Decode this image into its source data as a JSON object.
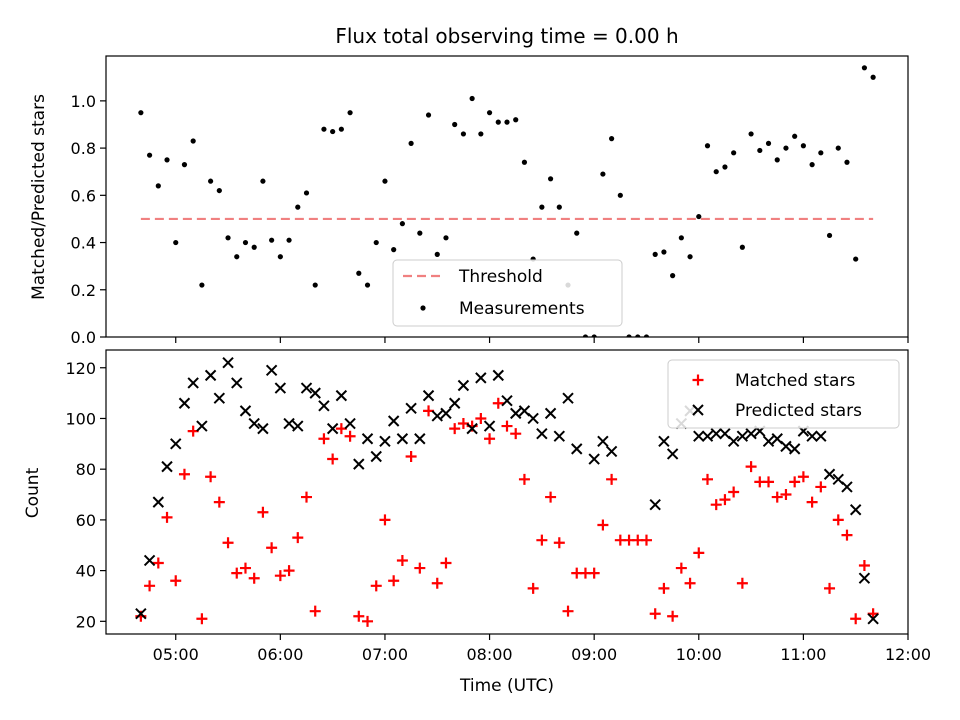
{
  "chart_data": [
    {
      "type": "scatter",
      "title": "Flux total observing time = 0.00 h",
      "ylabel": "Matched/Predicted stars",
      "xlabel": "",
      "ylim": [
        0,
        1.19
      ],
      "yticks": [
        "0.0",
        "0.2",
        "0.4",
        "0.6",
        "0.8",
        "1.0"
      ],
      "ytick_values": [
        0,
        0.2,
        0.4,
        0.6,
        0.8,
        1.0
      ],
      "legend_position": "lower-center",
      "series": [
        {
          "name": "Threshold",
          "style": "dashed-line",
          "color": "#f08080",
          "points": [
            [
              "04:40",
              0.5
            ],
            [
              "11:40",
              0.5
            ]
          ]
        },
        {
          "name": "Measurements",
          "style": "dot",
          "color": "#000000",
          "points": [
            [
              "04:40",
              0.95
            ],
            [
              "04:45",
              0.77
            ],
            [
              "04:50",
              0.64
            ],
            [
              "04:55",
              0.75
            ],
            [
              "05:00",
              0.4
            ],
            [
              "05:05",
              0.73
            ],
            [
              "05:10",
              0.83
            ],
            [
              "05:15",
              0.22
            ],
            [
              "05:20",
              0.66
            ],
            [
              "05:25",
              0.62
            ],
            [
              "05:30",
              0.42
            ],
            [
              "05:35",
              0.34
            ],
            [
              "05:40",
              0.4
            ],
            [
              "05:45",
              0.38
            ],
            [
              "05:50",
              0.66
            ],
            [
              "05:55",
              0.41
            ],
            [
              "06:00",
              0.34
            ],
            [
              "06:05",
              0.41
            ],
            [
              "06:10",
              0.55
            ],
            [
              "06:15",
              0.61
            ],
            [
              "06:20",
              0.22
            ],
            [
              "06:25",
              0.88
            ],
            [
              "06:30",
              0.87
            ],
            [
              "06:35",
              0.88
            ],
            [
              "06:40",
              0.95
            ],
            [
              "06:45",
              0.27
            ],
            [
              "06:50",
              0.22
            ],
            [
              "06:55",
              0.4
            ],
            [
              "07:00",
              0.66
            ],
            [
              "07:05",
              0.37
            ],
            [
              "07:10",
              0.48
            ],
            [
              "07:15",
              0.82
            ],
            [
              "07:20",
              0.44
            ],
            [
              "07:25",
              0.94
            ],
            [
              "07:30",
              0.35
            ],
            [
              "07:35",
              0.42
            ],
            [
              "07:40",
              0.9
            ],
            [
              "07:45",
              0.86
            ],
            [
              "07:50",
              1.01
            ],
            [
              "07:55",
              0.86
            ],
            [
              "08:00",
              0.95
            ],
            [
              "08:05",
              0.91
            ],
            [
              "08:10",
              0.91
            ],
            [
              "08:15",
              0.92
            ],
            [
              "08:20",
              0.74
            ],
            [
              "08:25",
              0.33
            ],
            [
              "08:30",
              0.55
            ],
            [
              "08:35",
              0.67
            ],
            [
              "08:40",
              0.55
            ],
            [
              "08:45",
              0.22
            ],
            [
              "08:50",
              0.44
            ],
            [
              "08:55",
              0.0
            ],
            [
              "09:00",
              0.0
            ],
            [
              "09:05",
              0.69
            ],
            [
              "09:10",
              0.84
            ],
            [
              "09:15",
              0.6
            ],
            [
              "09:20",
              0.0
            ],
            [
              "09:25",
              0.0
            ],
            [
              "09:30",
              0.0
            ],
            [
              "09:35",
              0.35
            ],
            [
              "09:40",
              0.36
            ],
            [
              "09:45",
              0.26
            ],
            [
              "09:50",
              0.42
            ],
            [
              "09:55",
              0.34
            ],
            [
              "10:00",
              0.51
            ],
            [
              "10:05",
              0.81
            ],
            [
              "10:10",
              0.7
            ],
            [
              "10:15",
              0.72
            ],
            [
              "10:20",
              0.78
            ],
            [
              "10:25",
              0.38
            ],
            [
              "10:30",
              0.86
            ],
            [
              "10:35",
              0.79
            ],
            [
              "10:40",
              0.82
            ],
            [
              "10:45",
              0.75
            ],
            [
              "10:50",
              0.8
            ],
            [
              "10:55",
              0.85
            ],
            [
              "11:00",
              0.81
            ],
            [
              "11:05",
              0.73
            ],
            [
              "11:10",
              0.78
            ],
            [
              "11:15",
              0.43
            ],
            [
              "11:20",
              0.8
            ],
            [
              "11:25",
              0.74
            ],
            [
              "11:30",
              0.33
            ],
            [
              "11:35",
              1.14
            ],
            [
              "11:40",
              1.1
            ]
          ]
        }
      ]
    },
    {
      "type": "scatter",
      "title": "",
      "ylabel": "Count",
      "xlabel": "Time (UTC)",
      "xlim": [
        "04:20",
        "12:00"
      ],
      "xticks": [
        "05:00",
        "06:00",
        "07:00",
        "08:00",
        "09:00",
        "10:00",
        "11:00",
        "12:00"
      ],
      "ylim": [
        15,
        127
      ],
      "yticks": [
        "20",
        "40",
        "60",
        "80",
        "100",
        "120"
      ],
      "ytick_values": [
        20,
        40,
        60,
        80,
        100,
        120
      ],
      "legend_position": "top-right",
      "series": [
        {
          "name": "Matched stars",
          "style": "plus",
          "color": "#ff0000",
          "points": [
            [
              "04:40",
              22
            ],
            [
              "04:45",
              34
            ],
            [
              "04:50",
              43
            ],
            [
              "04:55",
              61
            ],
            [
              "05:00",
              36
            ],
            [
              "05:05",
              78
            ],
            [
              "05:10",
              95
            ],
            [
              "05:15",
              21
            ],
            [
              "05:20",
              77
            ],
            [
              "05:25",
              67
            ],
            [
              "05:30",
              51
            ],
            [
              "05:35",
              39
            ],
            [
              "05:40",
              41
            ],
            [
              "05:45",
              37
            ],
            [
              "05:50",
              63
            ],
            [
              "05:55",
              49
            ],
            [
              "06:00",
              38
            ],
            [
              "06:05",
              40
            ],
            [
              "06:10",
              53
            ],
            [
              "06:15",
              69
            ],
            [
              "06:20",
              24
            ],
            [
              "06:25",
              92
            ],
            [
              "06:30",
              84
            ],
            [
              "06:35",
              96
            ],
            [
              "06:40",
              93
            ],
            [
              "06:45",
              22
            ],
            [
              "06:50",
              20
            ],
            [
              "06:55",
              34
            ],
            [
              "07:00",
              60
            ],
            [
              "07:05",
              36
            ],
            [
              "07:10",
              44
            ],
            [
              "07:15",
              85
            ],
            [
              "07:20",
              41
            ],
            [
              "07:25",
              103
            ],
            [
              "07:30",
              35
            ],
            [
              "07:35",
              43
            ],
            [
              "07:40",
              96
            ],
            [
              "07:45",
              98
            ],
            [
              "07:50",
              97
            ],
            [
              "07:55",
              100
            ],
            [
              "08:00",
              92
            ],
            [
              "08:05",
              106
            ],
            [
              "08:10",
              97
            ],
            [
              "08:15",
              94
            ],
            [
              "08:20",
              76
            ],
            [
              "08:25",
              33
            ],
            [
              "08:30",
              52
            ],
            [
              "08:35",
              69
            ],
            [
              "08:40",
              51
            ],
            [
              "08:45",
              24
            ],
            [
              "08:50",
              39
            ],
            [
              "08:55",
              39
            ],
            [
              "09:00",
              39
            ],
            [
              "09:05",
              58
            ],
            [
              "09:10",
              76
            ],
            [
              "09:15",
              52
            ],
            [
              "09:20",
              52
            ],
            [
              "09:25",
              52
            ],
            [
              "09:30",
              52
            ],
            [
              "09:35",
              23
            ],
            [
              "09:40",
              33
            ],
            [
              "09:45",
              22
            ],
            [
              "09:50",
              41
            ],
            [
              "09:55",
              35
            ],
            [
              "10:00",
              47
            ],
            [
              "10:05",
              76
            ],
            [
              "10:10",
              66
            ],
            [
              "10:15",
              68
            ],
            [
              "10:20",
              71
            ],
            [
              "10:25",
              35
            ],
            [
              "10:30",
              81
            ],
            [
              "10:35",
              75
            ],
            [
              "10:40",
              75
            ],
            [
              "10:45",
              69
            ],
            [
              "10:50",
              70
            ],
            [
              "10:55",
              75
            ],
            [
              "11:00",
              77
            ],
            [
              "11:05",
              67
            ],
            [
              "11:10",
              73
            ],
            [
              "11:15",
              33
            ],
            [
              "11:20",
              60
            ],
            [
              "11:25",
              54
            ],
            [
              "11:30",
              21
            ],
            [
              "11:35",
              42
            ],
            [
              "11:40",
              23
            ]
          ]
        },
        {
          "name": "Predicted stars",
          "style": "x",
          "color": "#000000",
          "points": [
            [
              "04:40",
              23
            ],
            [
              "04:45",
              44
            ],
            [
              "04:50",
              67
            ],
            [
              "04:55",
              81
            ],
            [
              "05:00",
              90
            ],
            [
              "05:05",
              106
            ],
            [
              "05:10",
              114
            ],
            [
              "05:15",
              97
            ],
            [
              "05:20",
              117
            ],
            [
              "05:25",
              108
            ],
            [
              "05:30",
              122
            ],
            [
              "05:35",
              114
            ],
            [
              "05:40",
              103
            ],
            [
              "05:45",
              98
            ],
            [
              "05:50",
              96
            ],
            [
              "05:55",
              119
            ],
            [
              "06:00",
              112
            ],
            [
              "06:05",
              98
            ],
            [
              "06:10",
              97
            ],
            [
              "06:15",
              112
            ],
            [
              "06:20",
              110
            ],
            [
              "06:25",
              105
            ],
            [
              "06:30",
              96
            ],
            [
              "06:35",
              109
            ],
            [
              "06:40",
              98
            ],
            [
              "06:45",
              82
            ],
            [
              "06:50",
              92
            ],
            [
              "06:55",
              85
            ],
            [
              "07:00",
              91
            ],
            [
              "07:05",
              99
            ],
            [
              "07:10",
              92
            ],
            [
              "07:15",
              104
            ],
            [
              "07:20",
              92
            ],
            [
              "07:25",
              109
            ],
            [
              "07:30",
              101
            ],
            [
              "07:35",
              102
            ],
            [
              "07:40",
              106
            ],
            [
              "07:45",
              113
            ],
            [
              "07:50",
              96
            ],
            [
              "07:55",
              116
            ],
            [
              "08:00",
              97
            ],
            [
              "08:05",
              117
            ],
            [
              "08:10",
              107
            ],
            [
              "08:15",
              102
            ],
            [
              "08:20",
              103
            ],
            [
              "08:25",
              100
            ],
            [
              "08:30",
              94
            ],
            [
              "08:35",
              102
            ],
            [
              "08:40",
              93
            ],
            [
              "08:45",
              108
            ],
            [
              "08:50",
              88
            ],
            [
              "09:00",
              84
            ],
            [
              "09:05",
              91
            ],
            [
              "09:10",
              87
            ],
            [
              "09:35",
              66
            ],
            [
              "09:40",
              91
            ],
            [
              "09:45",
              86
            ],
            [
              "09:50",
              98
            ],
            [
              "09:55",
              103
            ],
            [
              "10:00",
              93
            ],
            [
              "10:05",
              93
            ],
            [
              "10:10",
              94
            ],
            [
              "10:15",
              94
            ],
            [
              "10:20",
              91
            ],
            [
              "10:25",
              93
            ],
            [
              "10:30",
              94
            ],
            [
              "10:35",
              95
            ],
            [
              "10:40",
              91
            ],
            [
              "10:45",
              92
            ],
            [
              "10:50",
              89
            ],
            [
              "10:55",
              88
            ],
            [
              "11:00",
              95
            ],
            [
              "11:05",
              93
            ],
            [
              "11:10",
              93
            ],
            [
              "11:15",
              78
            ],
            [
              "11:20",
              76
            ],
            [
              "11:25",
              73
            ],
            [
              "11:30",
              64
            ],
            [
              "11:35",
              37
            ],
            [
              "11:40",
              21
            ]
          ]
        }
      ]
    }
  ]
}
